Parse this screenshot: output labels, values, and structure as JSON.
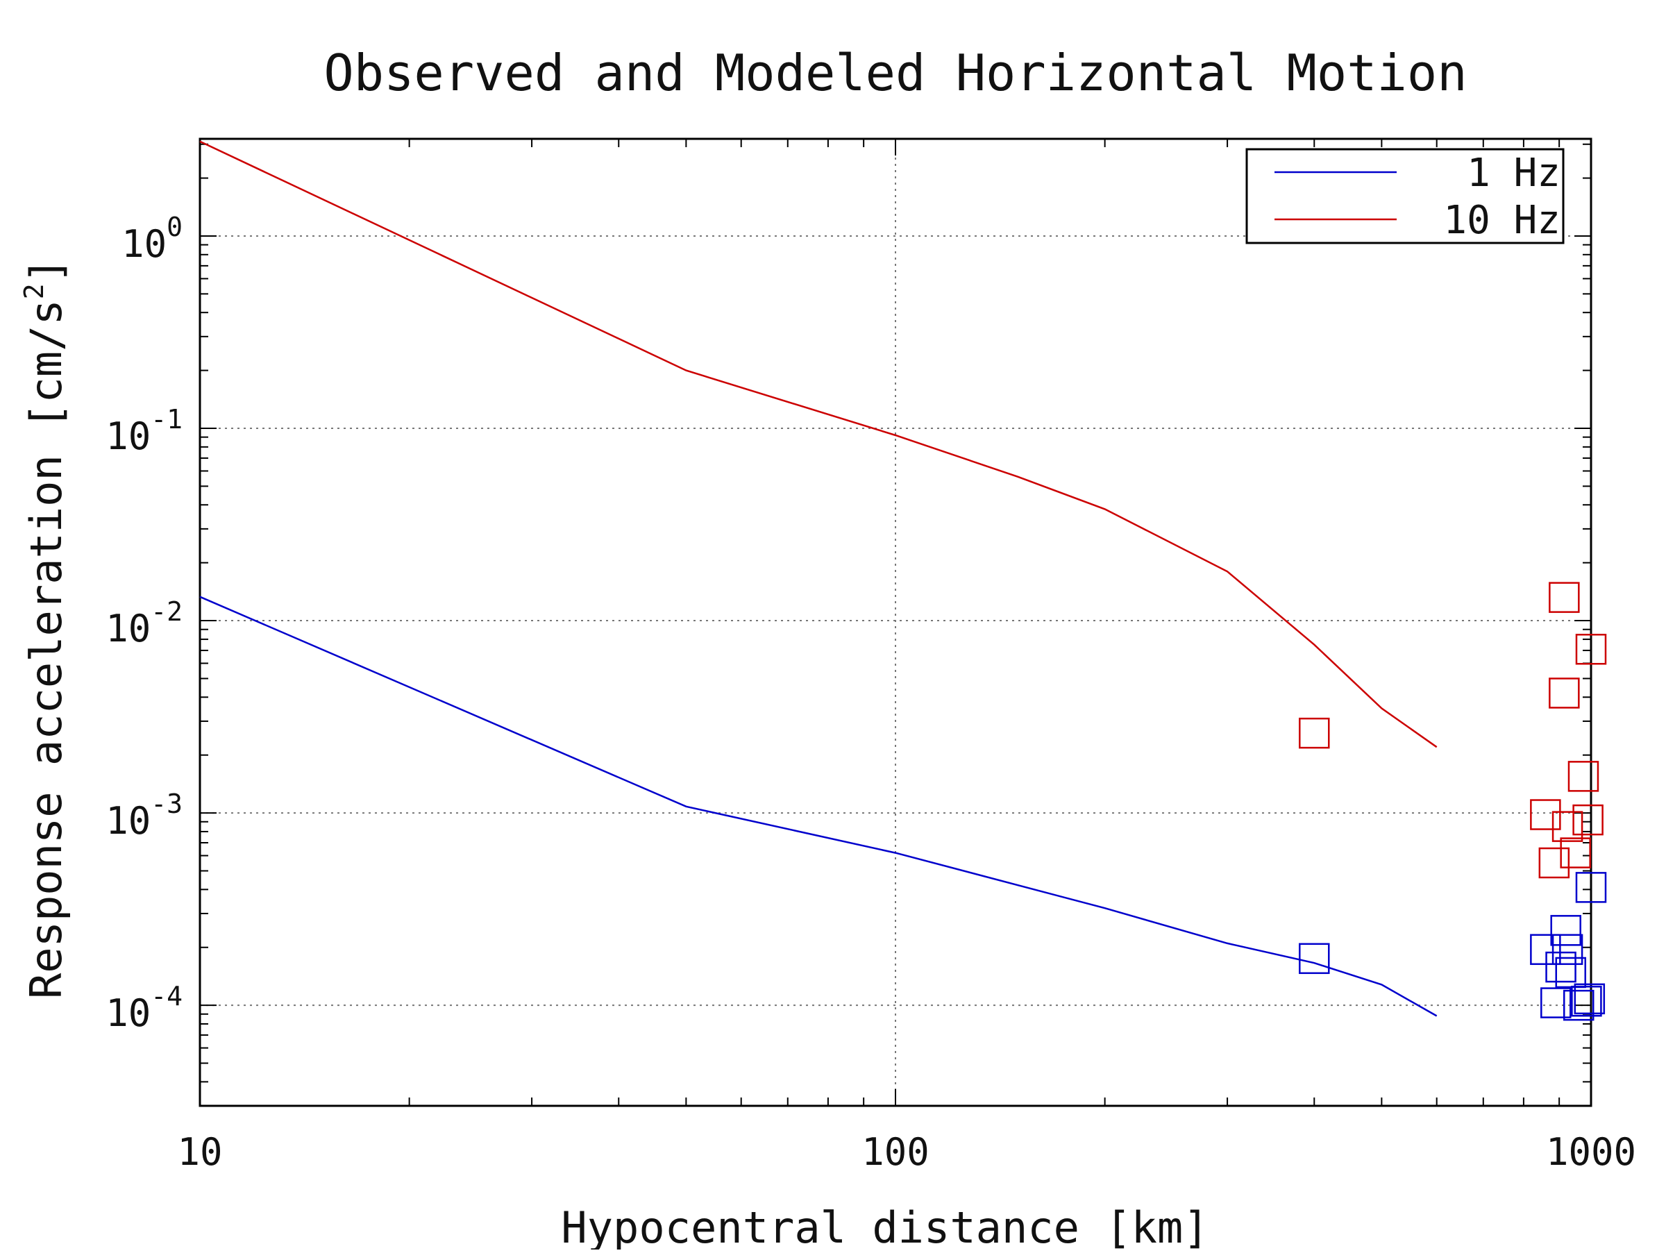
{
  "chart_data": {
    "type": "scatter",
    "title": "Observed and Modeled Horizontal Motion",
    "xlabel": "Hypocentral distance [km]",
    "ylabel": {
      "text": "Response acceleration [cm/s",
      "sup": "2",
      "tail": "]"
    },
    "x_scale": "log",
    "y_scale": "log",
    "xlim": [
      10,
      1000
    ],
    "ylim": [
      3e-05,
      3.2
    ],
    "grid": true,
    "legend_position": "top-right",
    "x_ticks": [
      {
        "value": 10,
        "label": "10"
      },
      {
        "value": 100,
        "label": "100"
      },
      {
        "value": 1000,
        "label": "1000"
      }
    ],
    "y_ticks": [
      {
        "value": 1,
        "base": "10",
        "exp": "0"
      },
      {
        "value": 0.1,
        "base": "10",
        "exp": "-1"
      },
      {
        "value": 0.01,
        "base": "10",
        "exp": "-2"
      },
      {
        "value": 0.001,
        "base": "10",
        "exp": "-3"
      },
      {
        "value": 0.0001,
        "base": "10",
        "exp": "-4"
      }
    ],
    "series": [
      {
        "name": "1 Hz",
        "color": "#0000cc",
        "line": [
          [
            10,
            0.0133
          ],
          [
            50,
            0.00108
          ],
          [
            100,
            0.00062
          ],
          [
            200,
            0.00032
          ],
          [
            300,
            0.00021
          ],
          [
            400,
            0.000166
          ],
          [
            500,
            0.000128
          ],
          [
            600,
            8.8e-05
          ]
        ],
        "points": [
          [
            400,
            0.000175
          ],
          [
            860,
            0.000195
          ],
          [
            890,
            0.000103
          ],
          [
            905,
            0.000158
          ],
          [
            920,
            0.000245
          ],
          [
            925,
            0.000195
          ],
          [
            935,
            0.000148
          ],
          [
            960,
            0.0001
          ],
          [
            985,
            0.000105
          ],
          [
            995,
            0.000108
          ],
          [
            1000,
            0.00041
          ]
        ]
      },
      {
        "name": "10 Hz",
        "color": "#cc0000",
        "line": [
          [
            10,
            3.1
          ],
          [
            50,
            0.2
          ],
          [
            100,
            0.092
          ],
          [
            150,
            0.056
          ],
          [
            200,
            0.038
          ],
          [
            300,
            0.018
          ],
          [
            400,
            0.0075
          ],
          [
            500,
            0.0035
          ],
          [
            600,
            0.0022
          ]
        ],
        "points": [
          [
            400,
            0.0026
          ],
          [
            860,
            0.00098
          ],
          [
            885,
            0.00055
          ],
          [
            915,
            0.0132
          ],
          [
            915,
            0.0042
          ],
          [
            925,
            0.00085
          ],
          [
            950,
            0.00062
          ],
          [
            975,
            0.00155
          ],
          [
            990,
            0.00092
          ],
          [
            1000,
            0.0071
          ]
        ]
      }
    ]
  }
}
